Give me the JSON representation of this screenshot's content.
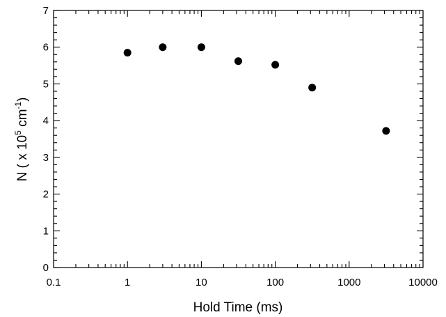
{
  "chart_data": {
    "type": "scatter",
    "xlabel": "Hold Time (ms)",
    "ylabel": {
      "prefix": "N ( x 10",
      "exp1": "5",
      "middle": " cm",
      "exp2": "-1",
      "suffix": ")"
    },
    "xscale": "log",
    "xlim": [
      0.1,
      10000
    ],
    "ylim": [
      0,
      7
    ],
    "xticks": [
      0.1,
      1,
      10,
      100,
      1000,
      10000
    ],
    "xtick_labels": [
      "0.1",
      "1",
      "10",
      "100",
      "1000",
      "10000"
    ],
    "yticks": [
      0,
      1,
      2,
      3,
      4,
      5,
      6,
      7
    ],
    "ytick_labels": [
      "0",
      "1",
      "2",
      "3",
      "4",
      "5",
      "6",
      "7"
    ],
    "grid": false,
    "marker_color": "#000000",
    "points": [
      {
        "x": 1,
        "y": 5.85
      },
      {
        "x": 3,
        "y": 6.0
      },
      {
        "x": 10,
        "y": 6.0
      },
      {
        "x": 31.6,
        "y": 5.62
      },
      {
        "x": 100,
        "y": 5.52
      },
      {
        "x": 316,
        "y": 4.9
      },
      {
        "x": 3160,
        "y": 3.72
      }
    ]
  }
}
